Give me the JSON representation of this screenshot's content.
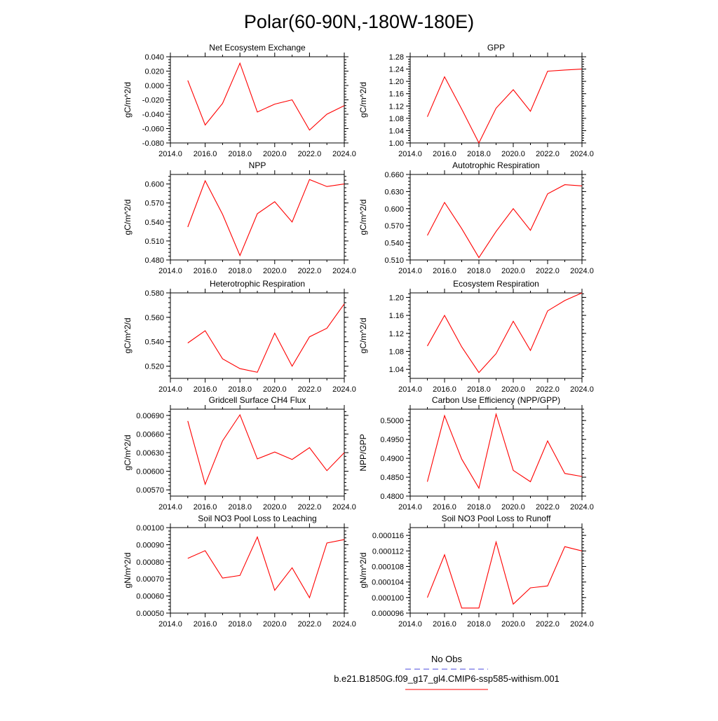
{
  "page_title": "Polar(60-90N,-180W-180E)",
  "legend": {
    "entries": [
      {
        "label": "No Obs",
        "color": "#4a4adc",
        "dash": true
      },
      {
        "label": "b.e21.B1850G.f09_g17_gl4.CMIP6-ssp585-withism.001",
        "color": "#ff0000",
        "dash": false
      }
    ]
  },
  "chart_data": [
    {
      "type": "line",
      "title": "Net Ecosystem Exchange",
      "xlabel": "",
      "ylabel": "gC/m^2/d",
      "xlim": [
        2014.0,
        2024.0
      ],
      "ylim": [
        -0.08,
        0.04
      ],
      "xticks": [
        "2014.0",
        "2016.0",
        "2018.0",
        "2020.0",
        "2022.0",
        "2024.0"
      ],
      "yticks": [
        "-0.080",
        "-0.060",
        "-0.040",
        "-0.020",
        "0.000",
        "0.020",
        "0.040"
      ],
      "x": [
        2015,
        2016,
        2017,
        2018,
        2019,
        2020,
        2021,
        2022,
        2023,
        2024
      ],
      "series": [
        {
          "color": "#ff0000",
          "values": [
            0.007,
            -0.055,
            -0.025,
            0.031,
            -0.037,
            -0.026,
            -0.02,
            -0.062,
            -0.04,
            -0.028
          ]
        }
      ]
    },
    {
      "type": "line",
      "title": "GPP",
      "xlabel": "",
      "ylabel": "gC/m^2/d",
      "xlim": [
        2014.0,
        2024.0
      ],
      "ylim": [
        1.0,
        1.28
      ],
      "xticks": [
        "2014.0",
        "2016.0",
        "2018.0",
        "2020.0",
        "2022.0",
        "2024.0"
      ],
      "yticks": [
        "1.00",
        "1.04",
        "1.08",
        "1.12",
        "1.16",
        "1.20",
        "1.24",
        "1.28"
      ],
      "x": [
        2015,
        2016,
        2017,
        2018,
        2019,
        2020,
        2021,
        2022,
        2023,
        2024
      ],
      "series": [
        {
          "color": "#ff0000",
          "values": [
            1.085,
            1.215,
            1.11,
            1.0,
            1.113,
            1.173,
            1.103,
            1.233,
            1.237,
            1.24
          ]
        }
      ]
    },
    {
      "type": "line",
      "title": "NPP",
      "xlabel": "",
      "ylabel": "gC/m^2/d",
      "xlim": [
        2014.0,
        2024.0
      ],
      "ylim": [
        0.48,
        0.615
      ],
      "xticks": [
        "2014.0",
        "2016.0",
        "2018.0",
        "2020.0",
        "2022.0",
        "2024.0"
      ],
      "yticks": [
        "0.480",
        "0.510",
        "0.540",
        "0.570",
        "0.600"
      ],
      "x": [
        2015,
        2016,
        2017,
        2018,
        2019,
        2020,
        2021,
        2022,
        2023,
        2024
      ],
      "series": [
        {
          "color": "#ff0000",
          "values": [
            0.532,
            0.605,
            0.552,
            0.487,
            0.553,
            0.572,
            0.54,
            0.607,
            0.596,
            0.6
          ]
        }
      ]
    },
    {
      "type": "line",
      "title": "Autotrophic Respiration",
      "xlabel": "",
      "ylabel": "gC/m^2/d",
      "xlim": [
        2014.0,
        2024.0
      ],
      "ylim": [
        0.51,
        0.66
      ],
      "xticks": [
        "2014.0",
        "2016.0",
        "2018.0",
        "2020.0",
        "2022.0",
        "2024.0"
      ],
      "yticks": [
        "0.510",
        "0.540",
        "0.570",
        "0.600",
        "0.630",
        "0.660"
      ],
      "x": [
        2015,
        2016,
        2017,
        2018,
        2019,
        2020,
        2021,
        2022,
        2023,
        2024
      ],
      "series": [
        {
          "color": "#ff0000",
          "values": [
            0.553,
            0.611,
            0.565,
            0.514,
            0.56,
            0.6,
            0.562,
            0.626,
            0.642,
            0.64
          ]
        }
      ]
    },
    {
      "type": "line",
      "title": "Heterotrophic Respiration",
      "xlabel": "",
      "ylabel": "gC/m^2/d",
      "xlim": [
        2014.0,
        2024.0
      ],
      "ylim": [
        0.51,
        0.58
      ],
      "xticks": [
        "2014.0",
        "2016.0",
        "2018.0",
        "2020.0",
        "2022.0",
        "2024.0"
      ],
      "yticks": [
        "0.520",
        "0.540",
        "0.560",
        "0.580"
      ],
      "x": [
        2015,
        2016,
        2017,
        2018,
        2019,
        2020,
        2021,
        2022,
        2023,
        2024
      ],
      "series": [
        {
          "color": "#ff0000",
          "values": [
            0.539,
            0.549,
            0.526,
            0.518,
            0.515,
            0.547,
            0.52,
            0.544,
            0.551,
            0.571
          ]
        }
      ]
    },
    {
      "type": "line",
      "title": "Ecosystem Respiration",
      "xlabel": "",
      "ylabel": "gC/m^2/d",
      "xlim": [
        2014.0,
        2024.0
      ],
      "ylim": [
        1.02,
        1.21
      ],
      "xticks": [
        "2014.0",
        "2016.0",
        "2018.0",
        "2020.0",
        "2022.0",
        "2024.0"
      ],
      "yticks": [
        "1.04",
        "1.08",
        "1.12",
        "1.16",
        "1.20"
      ],
      "x": [
        2015,
        2016,
        2017,
        2018,
        2019,
        2020,
        2021,
        2022,
        2023,
        2024
      ],
      "series": [
        {
          "color": "#ff0000",
          "values": [
            1.092,
            1.16,
            1.09,
            1.033,
            1.075,
            1.147,
            1.082,
            1.17,
            1.193,
            1.21
          ]
        }
      ]
    },
    {
      "type": "line",
      "title": "Gridcell Surface CH4 Flux",
      "xlabel": "",
      "ylabel": "gC/m^2/d",
      "xlim": [
        2014.0,
        2024.0
      ],
      "ylim": [
        0.0056,
        0.007
      ],
      "xticks": [
        "2014.0",
        "2016.0",
        "2018.0",
        "2020.0",
        "2022.0",
        "2024.0"
      ],
      "yticks": [
        "0.00570",
        "0.00600",
        "0.00630",
        "0.00660",
        "0.00690"
      ],
      "x": [
        2015,
        2016,
        2017,
        2018,
        2019,
        2020,
        2021,
        2022,
        2023,
        2024
      ],
      "series": [
        {
          "color": "#ff0000",
          "values": [
            0.00681,
            0.00579,
            0.00649,
            0.00691,
            0.0062,
            0.00631,
            0.00619,
            0.00638,
            0.00601,
            0.0063
          ]
        }
      ]
    },
    {
      "type": "line",
      "title": "Carbon Use Efficiency (NPP/GPP)",
      "xlabel": "",
      "ylabel": "NPP/GPP",
      "xlim": [
        2014.0,
        2024.0
      ],
      "ylim": [
        0.48,
        0.503
      ],
      "xticks": [
        "2014.0",
        "2016.0",
        "2018.0",
        "2020.0",
        "2022.0",
        "2024.0"
      ],
      "yticks": [
        "0.4800",
        "0.4850",
        "0.4900",
        "0.4950",
        "0.5000"
      ],
      "x": [
        2015,
        2016,
        2017,
        2018,
        2019,
        2020,
        2021,
        2022,
        2023,
        2024
      ],
      "series": [
        {
          "color": "#ff0000",
          "values": [
            0.4838,
            0.5013,
            0.4898,
            0.4821,
            0.5017,
            0.4868,
            0.4838,
            0.4946,
            0.486,
            0.4852
          ]
        }
      ]
    },
    {
      "type": "line",
      "title": "Soil NO3 Pool Loss to Leaching",
      "xlabel": "",
      "ylabel": "gN/m^2/d",
      "xlim": [
        2014.0,
        2024.0
      ],
      "ylim": [
        0.0005,
        0.001
      ],
      "xticks": [
        "2014.0",
        "2016.0",
        "2018.0",
        "2020.0",
        "2022.0",
        "2024.0"
      ],
      "yticks": [
        "0.00050",
        "0.00060",
        "0.00070",
        "0.00080",
        "0.00090",
        "0.00100"
      ],
      "x": [
        2015,
        2016,
        2017,
        2018,
        2019,
        2020,
        2021,
        2022,
        2023,
        2024
      ],
      "series": [
        {
          "color": "#ff0000",
          "values": [
            0.00082,
            0.000865,
            0.000705,
            0.00072,
            0.000945,
            0.000633,
            0.000765,
            0.00059,
            0.00091,
            0.00093
          ]
        }
      ]
    },
    {
      "type": "line",
      "title": "Soil NO3 Pool Loss to Runoff",
      "xlabel": "",
      "ylabel": "gN/m^2/d",
      "xlim": [
        2014.0,
        2024.0
      ],
      "ylim": [
        9.6e-05,
        0.000118
      ],
      "xticks": [
        "2014.0",
        "2016.0",
        "2018.0",
        "2020.0",
        "2022.0",
        "2024.0"
      ],
      "yticks": [
        "0.000096",
        "0.000100",
        "0.000104",
        "0.000108",
        "0.000112",
        "0.000116"
      ],
      "x": [
        2015,
        2016,
        2017,
        2018,
        2019,
        2020,
        2021,
        2022,
        2023,
        2024
      ],
      "series": [
        {
          "color": "#ff0000",
          "values": [
            0.0001,
            0.000111,
            9.73e-05,
            9.73e-05,
            0.0001143,
            9.83e-05,
            0.0001025,
            0.000103,
            0.0001131,
            0.000112
          ]
        }
      ]
    }
  ]
}
